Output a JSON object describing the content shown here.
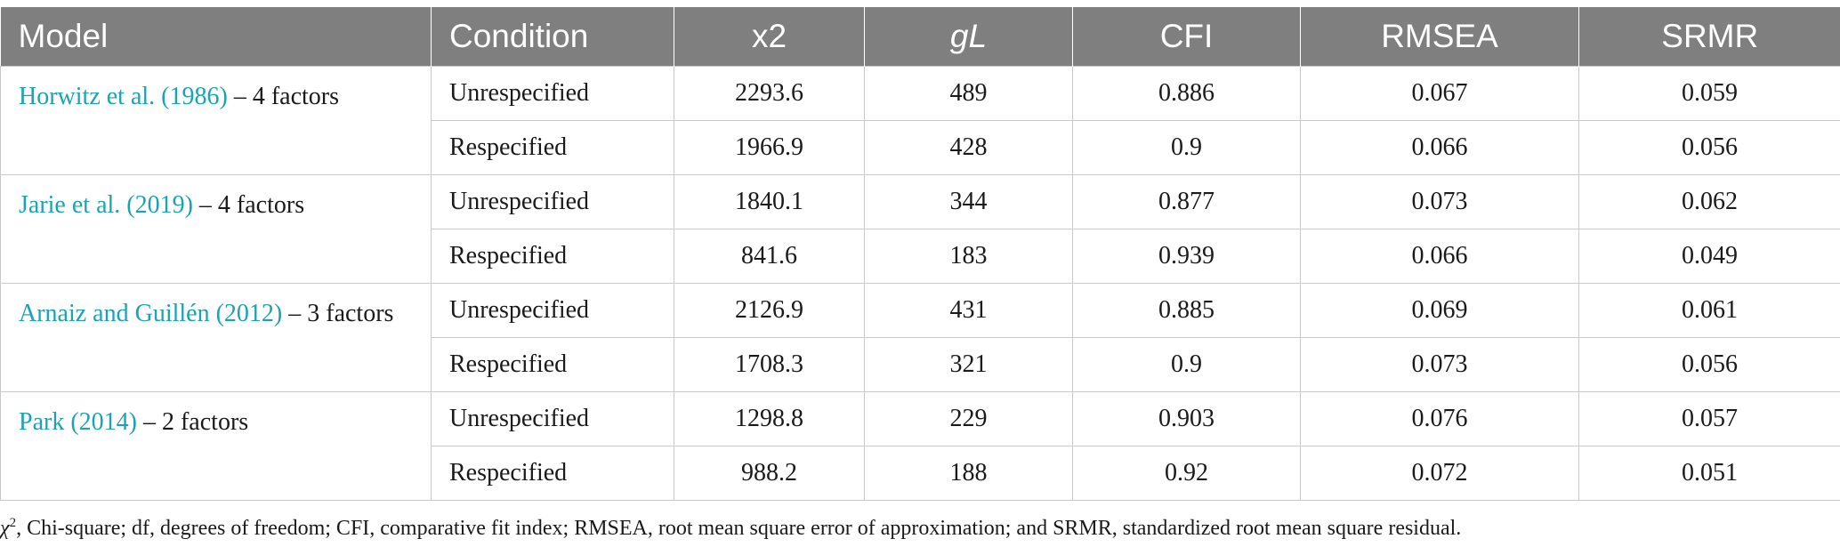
{
  "table": {
    "headers": {
      "model": "Model",
      "condition": "Condition",
      "x2": "x2",
      "gl": "gL",
      "cfi": "CFI",
      "rmsea": "RMSEA",
      "srmr": "SRMR"
    },
    "groups": [
      {
        "model_link": "Horwitz et al. (1986)",
        "model_rest": " – 4 factors",
        "rows": [
          {
            "condition": "Unrespecified",
            "x2": "2293.6",
            "gl": "489",
            "cfi": "0.886",
            "rmsea": "0.067",
            "srmr": "0.059"
          },
          {
            "condition": "Respecified",
            "x2": "1966.9",
            "gl": "428",
            "cfi": "0.9",
            "rmsea": "0.066",
            "srmr": "0.056"
          }
        ]
      },
      {
        "model_link": "Jarie et al. (2019)",
        "model_rest": " – 4 factors",
        "rows": [
          {
            "condition": "Unrespecified",
            "x2": "1840.1",
            "gl": "344",
            "cfi": "0.877",
            "rmsea": "0.073",
            "srmr": "0.062"
          },
          {
            "condition": "Respecified",
            "x2": "841.6",
            "gl": "183",
            "cfi": "0.939",
            "rmsea": "0.066",
            "srmr": "0.049"
          }
        ]
      },
      {
        "model_link": "Arnaiz and Guillén (2012)",
        "model_rest": " – 3 factors",
        "rows": [
          {
            "condition": "Unrespecified",
            "x2": "2126.9",
            "gl": "431",
            "cfi": "0.885",
            "rmsea": "0.069",
            "srmr": "0.061"
          },
          {
            "condition": "Respecified",
            "x2": "1708.3",
            "gl": "321",
            "cfi": "0.9",
            "rmsea": "0.073",
            "srmr": "0.056"
          }
        ]
      },
      {
        "model_link": "Park (2014)",
        "model_rest": " – 2 factors",
        "rows": [
          {
            "condition": "Unrespecified",
            "x2": "1298.8",
            "gl": "229",
            "cfi": "0.903",
            "rmsea": "0.076",
            "srmr": "0.057"
          },
          {
            "condition": "Respecified",
            "x2": "988.2",
            "gl": "188",
            "cfi": "0.92",
            "rmsea": "0.072",
            "srmr": "0.051"
          }
        ]
      }
    ]
  },
  "footnote": {
    "chi_symbol": "χ",
    "chi_sup": "2",
    "text": ", Chi-square; df, degrees of freedom; CFI, comparative fit index; RMSEA, root mean square error of approximation; and SRMR, standardized root mean square residual."
  },
  "colors": {
    "header_bg": "#7f7f7f",
    "header_text": "#ffffff",
    "link": "#1aa3b3",
    "grid": "#c9c9c9"
  }
}
